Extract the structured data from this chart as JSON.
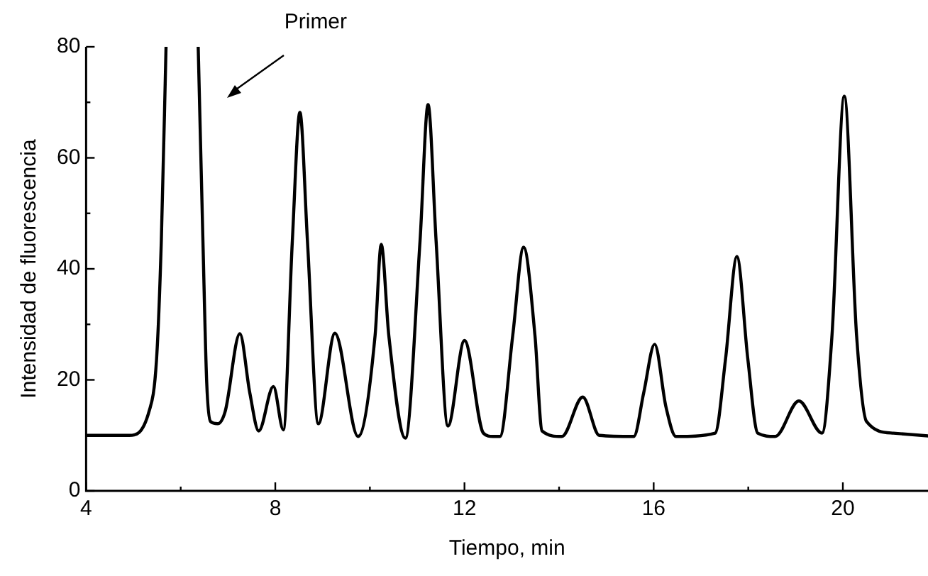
{
  "chart_data": {
    "type": "line",
    "xlabel": "Tiempo, min",
    "ylabel": "Intensidad de fluorescencia",
    "annotations": [
      "Primer"
    ],
    "xlim": [
      4,
      21.8
    ],
    "xticks": [
      4,
      {
        "value": 6,
        "label": null
      },
      8,
      {
        "value": 10,
        "label": null
      },
      12,
      {
        "value": 14,
        "label": null
      },
      16,
      {
        "value": 18,
        "label": null
      },
      20
    ],
    "ylim": [
      0,
      80
    ],
    "yticks": [
      0,
      {
        "value": 10,
        "label": null
      },
      20,
      {
        "value": 30,
        "label": null
      },
      40,
      {
        "value": 50,
        "label": null
      },
      60,
      {
        "value": 70,
        "label": null
      },
      80
    ],
    "grid": false,
    "legend": false,
    "marker": "none",
    "line_style": "solid",
    "series": [
      {
        "color": "#000000",
        "x": [
          4,
          4.91,
          5.33,
          5.49,
          5.59,
          5.69,
          5.75,
          6.3,
          6.37,
          6.47,
          6.55,
          6.63,
          6.78,
          6.94,
          7.25,
          7.46,
          7.65,
          7.96,
          8.17,
          8.36,
          8.52,
          8.68,
          8.91,
          9.26,
          9.75,
          10.11,
          10.24,
          10.4,
          10.75,
          11.06,
          11.23,
          11.4,
          11.65,
          12,
          12.4,
          12.6,
          12.75,
          13.02,
          13.25,
          13.49,
          13.64,
          14.06,
          14.5,
          14.85,
          15.58,
          15.79,
          16.02,
          16.26,
          16.47,
          17.3,
          17.52,
          17.76,
          17.99,
          18.2,
          18.57,
          19.07,
          19.56,
          19.77,
          20.03,
          20.29,
          20.5,
          21.07,
          21.8
        ],
        "values": [
          10,
          10,
          14.3,
          23.8,
          45,
          80,
          null,
          null,
          80,
          45,
          19.5,
          12.5,
          12.1,
          14.3,
          28.3,
          17.7,
          10.8,
          18.8,
          11,
          45,
          68.2,
          45,
          12.1,
          28.4,
          9.8,
          28,
          44.4,
          28,
          9.5,
          45,
          69.6,
          45,
          11.7,
          27.1,
          10.4,
          9.8,
          9.8,
          28,
          43.9,
          28,
          10.8,
          9.8,
          16.9,
          10,
          9.8,
          17.7,
          26.4,
          15.1,
          9.8,
          10.4,
          23.8,
          42.2,
          23.8,
          10.4,
          9.8,
          16.2,
          10.4,
          28,
          71.1,
          28,
          12.5,
          10.4,
          9.9
        ]
      }
    ]
  }
}
